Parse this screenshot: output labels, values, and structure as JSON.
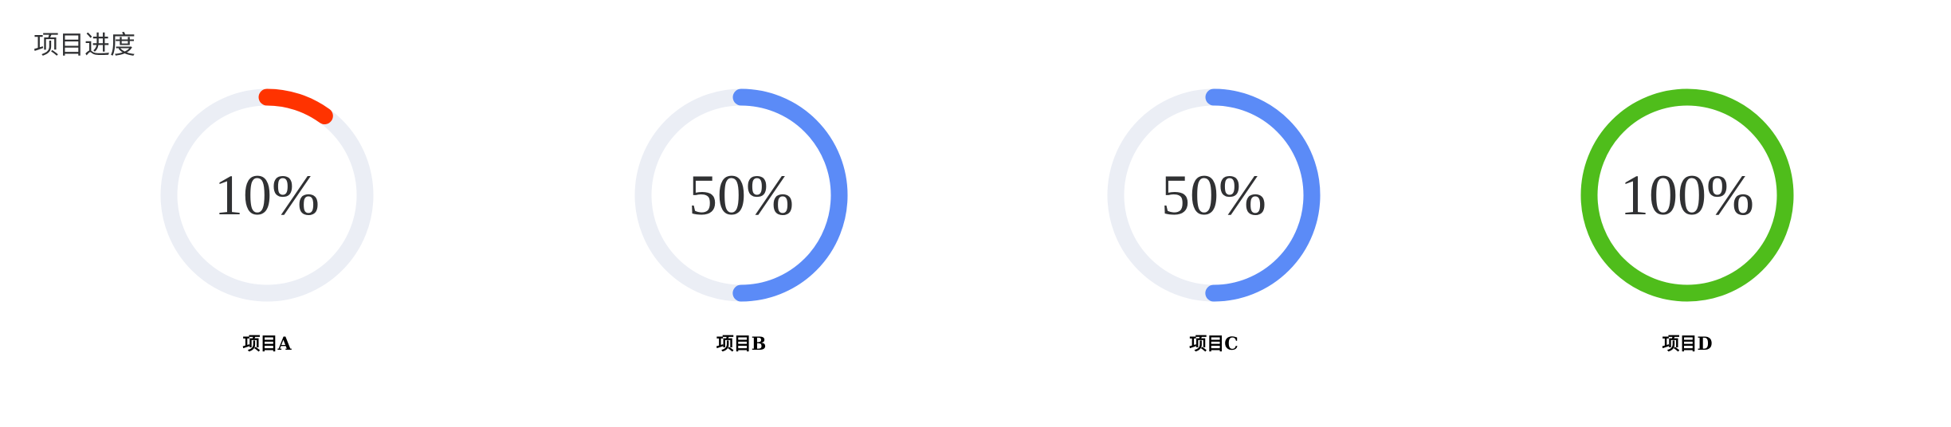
{
  "page": {
    "title": "项目进度"
  },
  "items": [
    {
      "label": "项目A",
      "percent": 10,
      "percent_text": "10%",
      "color": "#ff3300"
    },
    {
      "label": "项目B",
      "percent": 50,
      "percent_text": "50%",
      "color": "#5b8bf7"
    },
    {
      "label": "项目C",
      "percent": 50,
      "percent_text": "50%",
      "color": "#5b8bf7"
    },
    {
      "label": "项目D",
      "percent": 100,
      "percent_text": "100%",
      "color": "#4fbd1b"
    }
  ],
  "colors": {
    "track": "#ebeef5",
    "text": "#303133"
  }
}
